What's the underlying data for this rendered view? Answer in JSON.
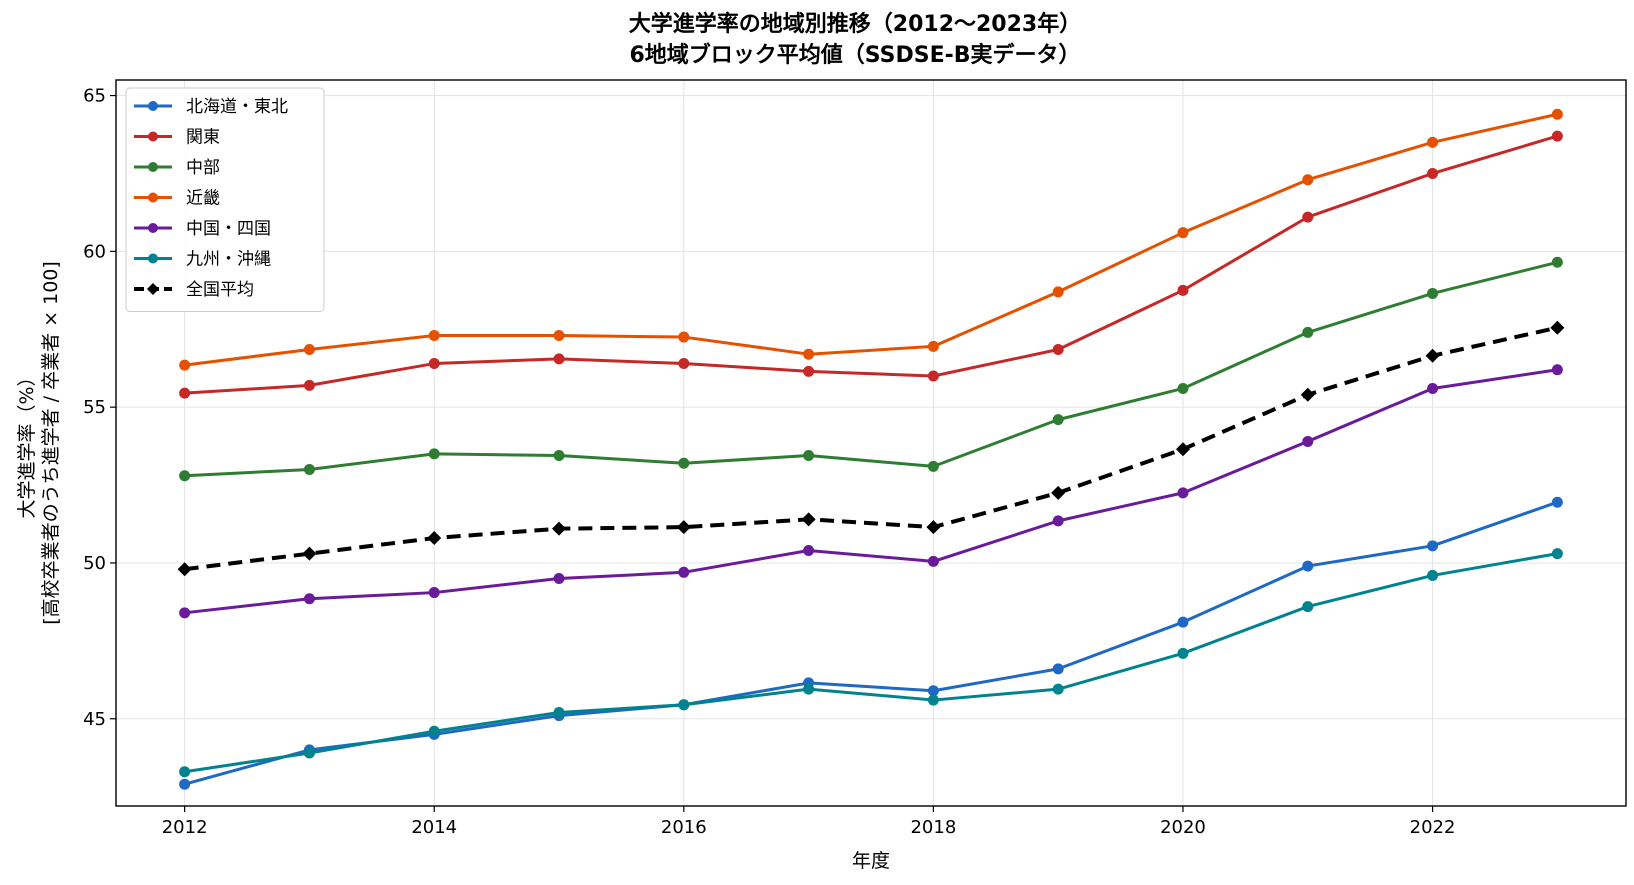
{
  "chart_data": {
    "type": "line",
    "title": "大学進学率の地域別推移（2012〜2023年）",
    "subtitle": "6地域ブロック平均値（SSDSE-B実データ）",
    "xlabel": "年度",
    "ylabel_line1": "大学進学率（%）",
    "ylabel_line2": "[高校卒業者のうち進学者 / 卒業者 × 100]",
    "x": [
      2012,
      2013,
      2014,
      2015,
      2016,
      2017,
      2018,
      2019,
      2020,
      2021,
      2022,
      2023
    ],
    "xlim": [
      2011.45,
      2023.55
    ],
    "ylim": [
      42.2,
      65.5
    ],
    "xticks": [
      2012,
      2014,
      2016,
      2018,
      2020,
      2022
    ],
    "yticks": [
      45,
      50,
      55,
      60,
      65
    ],
    "grid": true,
    "legend_position": "upper-left",
    "series": [
      {
        "name": "北海道・東北",
        "color": "#1f68c4",
        "style": "solid",
        "marker": "circle",
        "values": [
          42.9,
          44.0,
          44.5,
          45.1,
          45.45,
          46.15,
          45.9,
          46.6,
          48.1,
          49.9,
          50.55,
          51.95
        ]
      },
      {
        "name": "関東",
        "color": "#c62828",
        "style": "solid",
        "marker": "circle",
        "values": [
          55.45,
          55.7,
          56.4,
          56.55,
          56.4,
          56.15,
          56.0,
          56.85,
          58.75,
          61.1,
          62.5,
          63.7
        ]
      },
      {
        "name": "中部",
        "color": "#2e7d32",
        "style": "solid",
        "marker": "circle",
        "values": [
          52.8,
          53.0,
          53.5,
          53.45,
          53.2,
          53.45,
          53.1,
          54.6,
          55.6,
          57.4,
          58.65,
          59.65
        ]
      },
      {
        "name": "近畿",
        "color": "#e65100",
        "style": "solid",
        "marker": "circle",
        "values": [
          56.35,
          56.85,
          57.3,
          57.3,
          57.25,
          56.7,
          56.95,
          58.7,
          60.6,
          62.3,
          63.5,
          64.4
        ]
      },
      {
        "name": "中国・四国",
        "color": "#6a1b9a",
        "style": "solid",
        "marker": "circle",
        "values": [
          48.4,
          48.85,
          49.05,
          49.5,
          49.7,
          50.4,
          50.05,
          51.35,
          52.25,
          53.9,
          55.6,
          56.2
        ]
      },
      {
        "name": "九州・沖縄",
        "color": "#00838f",
        "style": "solid",
        "marker": "circle",
        "values": [
          43.3,
          43.9,
          44.6,
          45.2,
          45.45,
          45.95,
          45.6,
          45.95,
          47.1,
          48.6,
          49.6,
          50.3
        ]
      },
      {
        "name": "全国平均",
        "color": "#000000",
        "style": "dashed",
        "marker": "diamond",
        "values": [
          49.8,
          50.3,
          50.8,
          51.1,
          51.15,
          51.4,
          51.15,
          52.25,
          53.65,
          55.4,
          56.65,
          57.55
        ]
      }
    ]
  }
}
